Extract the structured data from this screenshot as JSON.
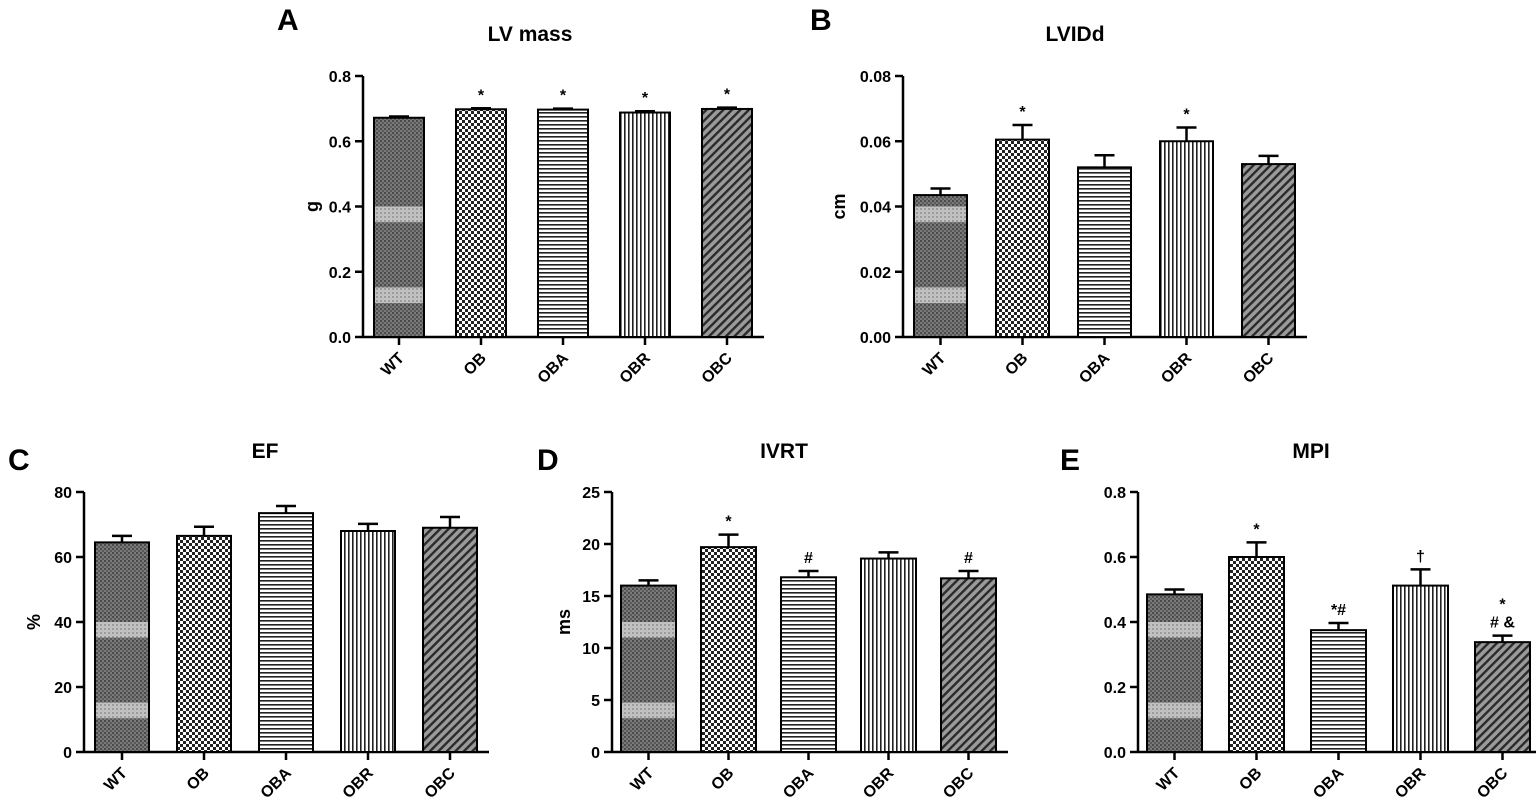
{
  "chart_data": [
    {
      "panel": "A",
      "type": "bar",
      "title": "LV mass",
      "ylabel": "g",
      "xlabel": "",
      "categories": [
        "WT",
        "OB",
        "OBA",
        "OBR",
        "OBC"
      ],
      "values": [
        0.672,
        0.698,
        0.697,
        0.688,
        0.699
      ],
      "errors": [
        0.004,
        0.003,
        0.003,
        0.004,
        0.004
      ],
      "annotations": [
        "",
        "*",
        "*",
        "*",
        "*"
      ],
      "ylim": [
        0,
        0.8
      ],
      "yticks": [
        0,
        0.2,
        0.4,
        0.6,
        0.8
      ],
      "ytick_labels": [
        "0.0",
        "0.2",
        "0.4",
        "0.6",
        "0.8"
      ]
    },
    {
      "panel": "B",
      "type": "bar",
      "title": "LVIDd",
      "ylabel": "cm",
      "xlabel": "",
      "categories": [
        "WT",
        "OB",
        "OBA",
        "OBR",
        "OBC"
      ],
      "values": [
        0.0435,
        0.0605,
        0.052,
        0.06,
        0.053
      ],
      "errors": [
        0.002,
        0.0045,
        0.0037,
        0.0042,
        0.0025
      ],
      "annotations": [
        "",
        "*",
        "",
        "*",
        ""
      ],
      "ylim": [
        0,
        0.08
      ],
      "yticks": [
        0,
        0.02,
        0.04,
        0.06,
        0.08
      ],
      "ytick_labels": [
        "0.00",
        "0.02",
        "0.04",
        "0.06",
        "0.08"
      ]
    },
    {
      "panel": "C",
      "type": "bar",
      "title": "EF",
      "ylabel": "%",
      "xlabel": "",
      "categories": [
        "WT",
        "OB",
        "OBA",
        "OBR",
        "OBC"
      ],
      "values": [
        64.5,
        66.5,
        73.5,
        68.0,
        69.0
      ],
      "errors": [
        2.0,
        2.8,
        2.2,
        2.2,
        3.3
      ],
      "annotations": [
        "",
        "",
        "",
        "",
        ""
      ],
      "ylim": [
        0,
        80
      ],
      "yticks": [
        0,
        20,
        40,
        60,
        80
      ],
      "ytick_labels": [
        "0",
        "20",
        "40",
        "60",
        "80"
      ]
    },
    {
      "panel": "D",
      "type": "bar",
      "title": "IVRT",
      "ylabel": "ms",
      "xlabel": "",
      "categories": [
        "WT",
        "OB",
        "OBA",
        "OBR",
        "OBC"
      ],
      "values": [
        16.0,
        19.7,
        16.8,
        18.6,
        16.7
      ],
      "errors": [
        0.5,
        1.2,
        0.6,
        0.6,
        0.7
      ],
      "annotations": [
        "",
        "*",
        "#",
        "",
        "#"
      ],
      "ylim": [
        0,
        25
      ],
      "yticks": [
        0,
        5,
        10,
        15,
        20,
        25
      ],
      "ytick_labels": [
        "0",
        "5",
        "10",
        "15",
        "20",
        "25"
      ]
    },
    {
      "panel": "E",
      "type": "bar",
      "title": "MPI",
      "ylabel": "",
      "xlabel": "",
      "categories": [
        "WT",
        "OB",
        "OBA",
        "OBR",
        "OBC"
      ],
      "values": [
        0.485,
        0.6,
        0.375,
        0.512,
        0.338
      ],
      "errors": [
        0.015,
        0.045,
        0.022,
        0.05,
        0.02
      ],
      "annotations": [
        "",
        "*",
        "*#",
        "†",
        "# &"
      ],
      "annotations_upper": [
        "",
        "",
        "",
        "",
        "*"
      ],
      "ylim": [
        0,
        0.8
      ],
      "yticks": [
        0,
        0.2,
        0.4,
        0.6,
        0.8
      ],
      "ytick_labels": [
        "0.0",
        "0.2",
        "0.4",
        "0.6",
        "0.8"
      ]
    }
  ]
}
